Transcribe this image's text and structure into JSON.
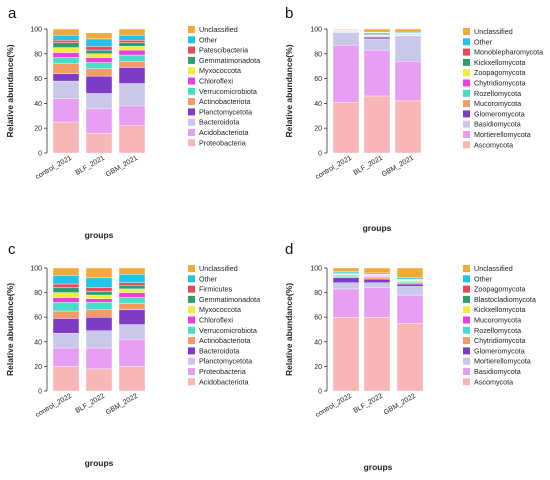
{
  "chart_data": [
    {
      "panel": "a",
      "type": "bar",
      "stacked": true,
      "xlabel": "groups",
      "ylabel": "Relative abundance(%)",
      "ylim": [
        0,
        100
      ],
      "yticks": [
        0,
        20,
        40,
        60,
        80,
        100
      ],
      "categories": [
        "control_2021",
        "BLF_2021",
        "GBM_2021"
      ],
      "series": [
        {
          "name": "Proteobacteria",
          "color": "#f9b6b6",
          "values": [
            25,
            16,
            22
          ]
        },
        {
          "name": "Acidobacteriota",
          "color": "#e79ef3",
          "values": [
            19,
            20,
            16
          ]
        },
        {
          "name": "Bacteroidota",
          "color": "#c9c7ea",
          "values": [
            14,
            12,
            18
          ]
        },
        {
          "name": "Planctomycetota",
          "color": "#7d3bc6",
          "values": [
            6,
            14,
            13
          ]
        },
        {
          "name": "Actinobacteriota",
          "color": "#f49a64",
          "values": [
            8,
            6,
            5
          ]
        },
        {
          "name": "Verrucomicrobiota",
          "color": "#46dfc6",
          "values": [
            5,
            5,
            5
          ]
        },
        {
          "name": "Chloroflexi",
          "color": "#e83fe0",
          "values": [
            4,
            4,
            4
          ]
        },
        {
          "name": "Myxococcota",
          "color": "#f3ec40",
          "values": [
            4,
            3,
            3
          ]
        },
        {
          "name": "Gemmatimonadota",
          "color": "#2e9e6e",
          "values": [
            4,
            3,
            3
          ]
        },
        {
          "name": "Patescibacteria",
          "color": "#e84a5b",
          "values": [
            2,
            3,
            2
          ]
        },
        {
          "name": "Other",
          "color": "#22c3e6",
          "values": [
            4,
            6,
            4
          ]
        },
        {
          "name": "Unclassified",
          "color": "#f3a93a",
          "values": [
            5,
            5,
            5
          ]
        }
      ],
      "legend_order": [
        "Unclassified",
        "Other",
        "Patescibacteria",
        "Gemmatimonadota",
        "Myxococcota",
        "Chloroflexi",
        "Verrucomicrobiota",
        "Actinobacteriota",
        "Planctomycetota",
        "Bacteroidota",
        "Acidobacteriota",
        "Proteobacteria"
      ]
    },
    {
      "panel": "b",
      "type": "bar",
      "stacked": true,
      "xlabel": "groups",
      "ylabel": "Relative abundance(%)",
      "ylim": [
        0,
        100
      ],
      "yticks": [
        0,
        20,
        40,
        60,
        80,
        100
      ],
      "categories": [
        "control_2021",
        "BLF_2021",
        "GBM_2021"
      ],
      "series": [
        {
          "name": "Ascomycota",
          "color": "#f9b6b6",
          "values": [
            41,
            46,
            42
          ]
        },
        {
          "name": "Mortierellomycota",
          "color": "#e79ef3",
          "values": [
            46,
            37,
            32
          ]
        },
        {
          "name": "Basidiomycota",
          "color": "#c9c7ea",
          "values": [
            10,
            9,
            20
          ]
        },
        {
          "name": "Glomeromycota",
          "color": "#7d3bc6",
          "values": [
            0.5,
            1.5,
            0.5
          ]
        },
        {
          "name": "Mucoromycota",
          "color": "#f49a64",
          "values": [
            0.5,
            0.5,
            0.5
          ]
        },
        {
          "name": "Rozellomycota",
          "color": "#46dfc6",
          "values": [
            0.3,
            0.5,
            0.5
          ]
        },
        {
          "name": "Chytridiomycota",
          "color": "#e83fe0",
          "values": [
            0.2,
            0.5,
            0.5
          ]
        },
        {
          "name": "Zoopagomycota",
          "color": "#f3ec40",
          "values": [
            0.2,
            0.5,
            0.3
          ]
        },
        {
          "name": "Kickxellomycota",
          "color": "#2e9e6e",
          "values": [
            0.2,
            1,
            0.2
          ]
        },
        {
          "name": "Monoblepharomycota",
          "color": "#e84a5b",
          "values": [
            0.1,
            0.5,
            0.2
          ]
        },
        {
          "name": "Other",
          "color": "#22c3e6",
          "values": [
            0.5,
            0.5,
            0.8
          ]
        },
        {
          "name": "Unclassified",
          "color": "#f3a93a",
          "values": [
            0.5,
            2.5,
            2.5
          ]
        }
      ],
      "legend_order": [
        "Unclassified",
        "Other",
        "Monoblepharomycota",
        "Kickxellomycota",
        "Zoopagomycota",
        "Chytridiomycota",
        "Rozellomycota",
        "Mucoromycota",
        "Glomeromycota",
        "Basidiomycota",
        "Mortierellomycota",
        "Ascomycota"
      ]
    },
    {
      "panel": "c",
      "type": "bar",
      "stacked": true,
      "xlabel": "groups",
      "ylabel": "Relative abundance(%)",
      "ylim": [
        0,
        100
      ],
      "yticks": [
        0,
        20,
        40,
        60,
        80,
        100
      ],
      "categories": [
        "control_2022",
        "BLF_2022",
        "GBM_2022"
      ],
      "series": [
        {
          "name": "Acidobacteriota",
          "color": "#f9b6b6",
          "values": [
            20,
            18,
            20
          ]
        },
        {
          "name": "Proteobacteria",
          "color": "#e79ef3",
          "values": [
            15,
            17,
            22
          ]
        },
        {
          "name": "Planctomycetota",
          "color": "#c9c7ea",
          "values": [
            12,
            14,
            12
          ]
        },
        {
          "name": "Bacteroidota",
          "color": "#7d3bc6",
          "values": [
            12,
            11,
            12
          ]
        },
        {
          "name": "Actinobacteriota",
          "color": "#f49a64",
          "values": [
            6,
            6,
            5
          ]
        },
        {
          "name": "Verrucomicrobiota",
          "color": "#46dfc6",
          "values": [
            7,
            6,
            5
          ]
        },
        {
          "name": "Chloroflexi",
          "color": "#e83fe0",
          "values": [
            4,
            3,
            4
          ]
        },
        {
          "name": "Myxococcota",
          "color": "#f3ec40",
          "values": [
            4,
            3,
            3
          ]
        },
        {
          "name": "Gemmatimonadota",
          "color": "#2e9e6e",
          "values": [
            4,
            3,
            3
          ]
        },
        {
          "name": "Firmicutes",
          "color": "#e84a5b",
          "values": [
            3,
            3,
            2
          ]
        },
        {
          "name": "Other",
          "color": "#22c3e6",
          "values": [
            7,
            8,
            7
          ]
        },
        {
          "name": "Unclassified",
          "color": "#f3a93a",
          "values": [
            6,
            8,
            5
          ]
        }
      ],
      "legend_order": [
        "Unclassified",
        "Other",
        "Firmicutes",
        "Gemmatimonadota",
        "Myxococcota",
        "Chloroflexi",
        "Verrucomicrobiota",
        "Actinobacteriota",
        "Bacteroidota",
        "Planctomycetota",
        "Proteobacteria",
        "Acidobacteriota"
      ]
    },
    {
      "panel": "d",
      "type": "bar",
      "stacked": true,
      "xlabel": "groups",
      "ylabel": "Relative abundance(%)",
      "ylim": [
        0,
        100
      ],
      "yticks": [
        0,
        20,
        40,
        60,
        80,
        100
      ],
      "categories": [
        "control_2022",
        "BLF_2022",
        "GBM_2022"
      ],
      "series": [
        {
          "name": "Ascomycota",
          "color": "#f9b6b6",
          "values": [
            60,
            60,
            55
          ]
        },
        {
          "name": "Basidiomycota",
          "color": "#e79ef3",
          "values": [
            23,
            24,
            23
          ]
        },
        {
          "name": "Mortierellomycota",
          "color": "#c9c7ea",
          "values": [
            5,
            4,
            7
          ]
        },
        {
          "name": "Glomeromycota",
          "color": "#7d3bc6",
          "values": [
            4,
            3,
            2
          ]
        },
        {
          "name": "Chytridiomycota",
          "color": "#f49a64",
          "values": [
            1,
            1,
            1
          ]
        },
        {
          "name": "Rozellomycota",
          "color": "#46dfc6",
          "values": [
            1,
            1,
            1
          ]
        },
        {
          "name": "Mucoromycota",
          "color": "#e83fe0",
          "values": [
            0.5,
            0.5,
            0.5
          ]
        },
        {
          "name": "Kickxellomycota",
          "color": "#f3ec40",
          "values": [
            0.5,
            0.5,
            0.5
          ]
        },
        {
          "name": "Blastocladiomycota",
          "color": "#2e9e6e",
          "values": [
            0.5,
            0.5,
            0.5
          ]
        },
        {
          "name": "Zoopagomycota",
          "color": "#e84a5b",
          "values": [
            0.5,
            0.5,
            0.5
          ]
        },
        {
          "name": "Other",
          "color": "#22c3e6",
          "values": [
            1,
            1,
            1
          ]
        },
        {
          "name": "Unclassified",
          "color": "#f3a93a",
          "values": [
            3,
            4,
            8
          ]
        }
      ],
      "legend_order": [
        "Unclassified",
        "Other",
        "Zoopagomycota",
        "Blastocladiomycota",
        "Kickxellomycota",
        "Mucoromycota",
        "Rozellomycota",
        "Chytridiomycota",
        "Glomeromycota",
        "Mortierellomycota",
        "Basidiomycota",
        "Ascomycota"
      ]
    }
  ]
}
